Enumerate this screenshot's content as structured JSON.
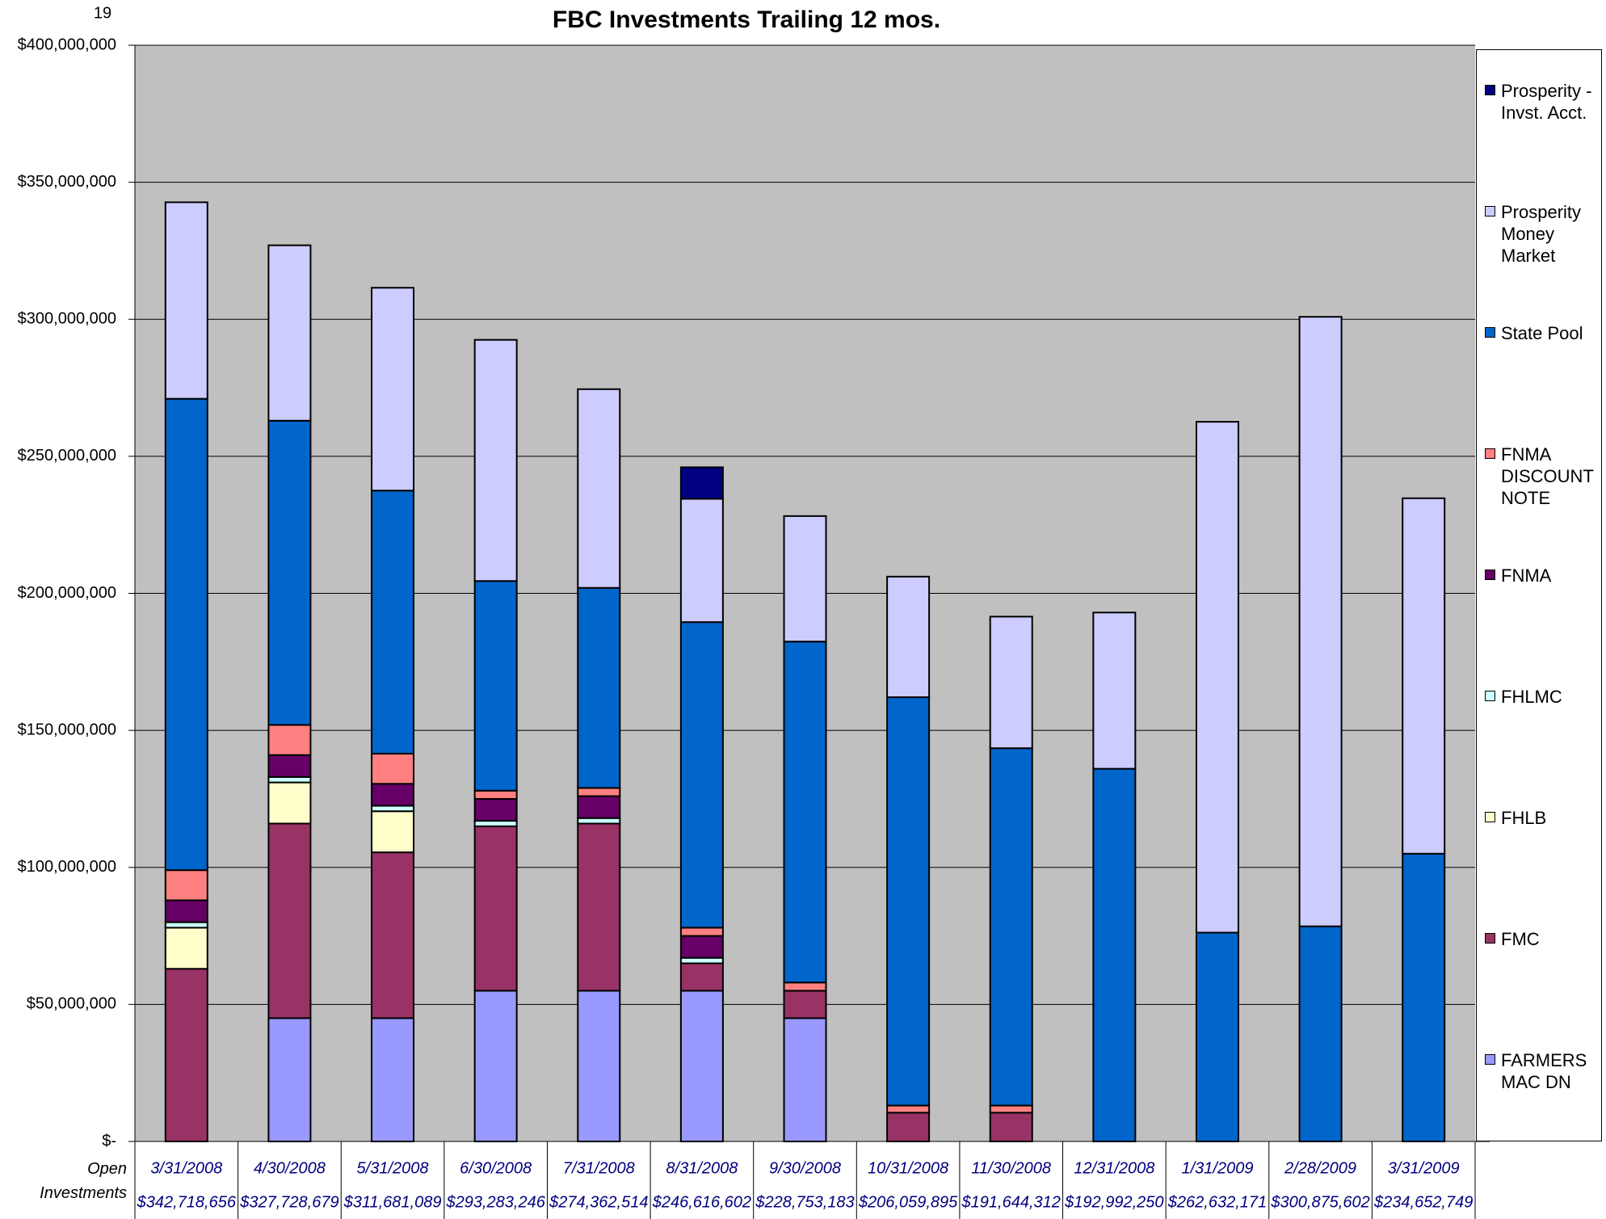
{
  "page_number": "19",
  "chart_data": {
    "type": "stacked_bar",
    "title": "FBC Investments Trailing 12 mos.",
    "categories": [
      "3/31/2008",
      "4/30/2008",
      "5/31/2008",
      "6/30/2008",
      "7/31/2008",
      "8/31/2008",
      "9/30/2008",
      "10/31/2008",
      "11/30/2008",
      "12/31/2008",
      "1/31/2009",
      "2/28/2009",
      "3/31/2009"
    ],
    "series": [
      {
        "name": "FARMERS MAC DN",
        "color": "#9999ff",
        "values": [
          0,
          45000000,
          45000000,
          55000000,
          55000000,
          55000000,
          45000000,
          0,
          0,
          0,
          0,
          0,
          0
        ]
      },
      {
        "name": "FMC",
        "color": "#993366",
        "values": [
          63000000,
          71000000,
          60500000,
          60000000,
          61000000,
          10000000,
          10000000,
          10500000,
          10500000,
          0,
          0,
          0,
          0
        ]
      },
      {
        "name": "FHLB",
        "color": "#ffffcc",
        "values": [
          15000000,
          15000000,
          15000000,
          0,
          0,
          0,
          0,
          0,
          0,
          0,
          0,
          0,
          0
        ]
      },
      {
        "name": "FHLMC",
        "color": "#ccffff",
        "values": [
          2000000,
          2000000,
          2000000,
          2000000,
          2000000,
          2000000,
          0,
          0,
          0,
          0,
          0,
          0,
          0
        ]
      },
      {
        "name": "FNMA",
        "color": "#660066",
        "values": [
          8000000,
          8000000,
          8000000,
          8000000,
          8000000,
          8000000,
          0,
          0,
          0,
          0,
          0,
          0,
          0
        ]
      },
      {
        "name": "FNMA DISCOUNT NOTE",
        "color": "#ff8080",
        "values": [
          11000000,
          11000000,
          11000000,
          3000000,
          3000000,
          3000000,
          3000000,
          2600000,
          2600000,
          0,
          0,
          0,
          0
        ]
      },
      {
        "name": "State Pool",
        "color": "#0066cc",
        "values": [
          172000000,
          111000000,
          96000000,
          76500000,
          73000000,
          111500000,
          124400000,
          149000000,
          130400000,
          136000000,
          76200000,
          78500000,
          105000000
        ]
      },
      {
        "name": "Prosperity Money Market",
        "color": "#ccccff",
        "values": [
          71700000,
          64000000,
          74000000,
          88000000,
          72500000,
          45000000,
          45800000,
          44000000,
          48000000,
          57000000,
          186400000,
          222400000,
          129700000
        ]
      },
      {
        "name": "Prosperity - Invst. Acct.",
        "color": "#000080",
        "values": [
          0,
          0,
          0,
          0,
          0,
          11500000,
          0,
          0,
          0,
          0,
          0,
          0,
          0
        ]
      }
    ],
    "ylim": [
      0,
      400000000
    ],
    "yticks": [
      {
        "value": 0,
        "label": "$-"
      },
      {
        "value": 50000000,
        "label": "$50,000,000"
      },
      {
        "value": 100000000,
        "label": "$100,000,000"
      },
      {
        "value": 150000000,
        "label": "$150,000,000"
      },
      {
        "value": 200000000,
        "label": "$200,000,000"
      },
      {
        "value": 250000000,
        "label": "$250,000,000"
      },
      {
        "value": 300000000,
        "label": "$300,000,000"
      },
      {
        "value": 350000000,
        "label": "$350,000,000"
      },
      {
        "value": 400000000,
        "label": "$400,000,000"
      }
    ],
    "grid": true,
    "legend": "right",
    "totals": {
      "label": "Open Investments",
      "values": [
        342718656,
        327728679,
        311681089,
        293283246,
        274362514,
        246616602,
        228753183,
        206059895,
        191644312,
        192992250,
        262632171,
        300875602,
        234652749
      ],
      "value_labels": [
        "$342,718,656",
        "$327,728,679",
        "$311,681,089",
        "$293,283,246",
        "$274,362,514",
        "$246,616,602",
        "$228,753,183",
        "$206,059,895",
        "$191,644,312",
        "$192,992,250",
        "$262,632,171",
        "$300,875,602",
        "$234,652,749"
      ]
    }
  }
}
